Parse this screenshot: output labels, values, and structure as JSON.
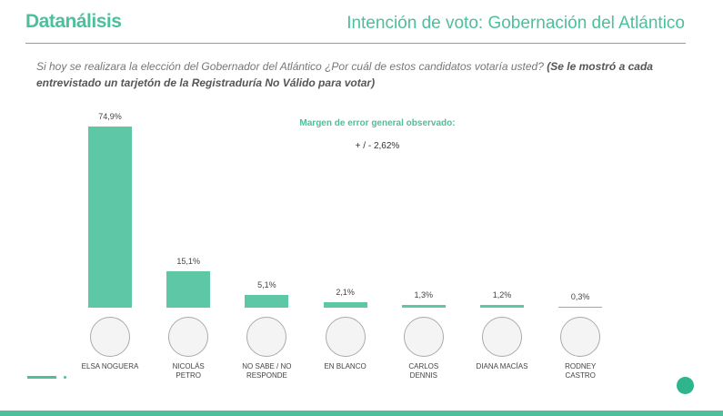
{
  "brand": "Datanálisis",
  "chart_data": {
    "type": "bar",
    "title": "Intención de voto: Gobernación del Atlántico",
    "subtitle": "Si hoy se realizara la elección del Gobernador del Atlántico ¿Por cuál de estos candidatos votaría usted?",
    "subtitle_note": "(Se le mostró a cada entrevistado un tarjetón de la Registraduría No Válido para votar)",
    "annotation_title": "Margen de error general observado:",
    "annotation_value": "+ / - 2,62%",
    "categories": [
      "ELSA NOGUERA",
      "NICOLÁS PETRO",
      "NO SABE / NO RESPONDE",
      "EN BLANCO",
      "CARLOS DENNIS",
      "DIANA MACÍAS",
      "RODNEY CASTRO"
    ],
    "values": [
      74.9,
      15.1,
      5.1,
      2.1,
      1.3,
      1.2,
      0.3
    ],
    "value_labels": [
      "74,9%",
      "15,1%",
      "5,1%",
      "2,1%",
      "1,3%",
      "1,2%",
      "0,3%"
    ],
    "color": "#5ec8a6"
  }
}
